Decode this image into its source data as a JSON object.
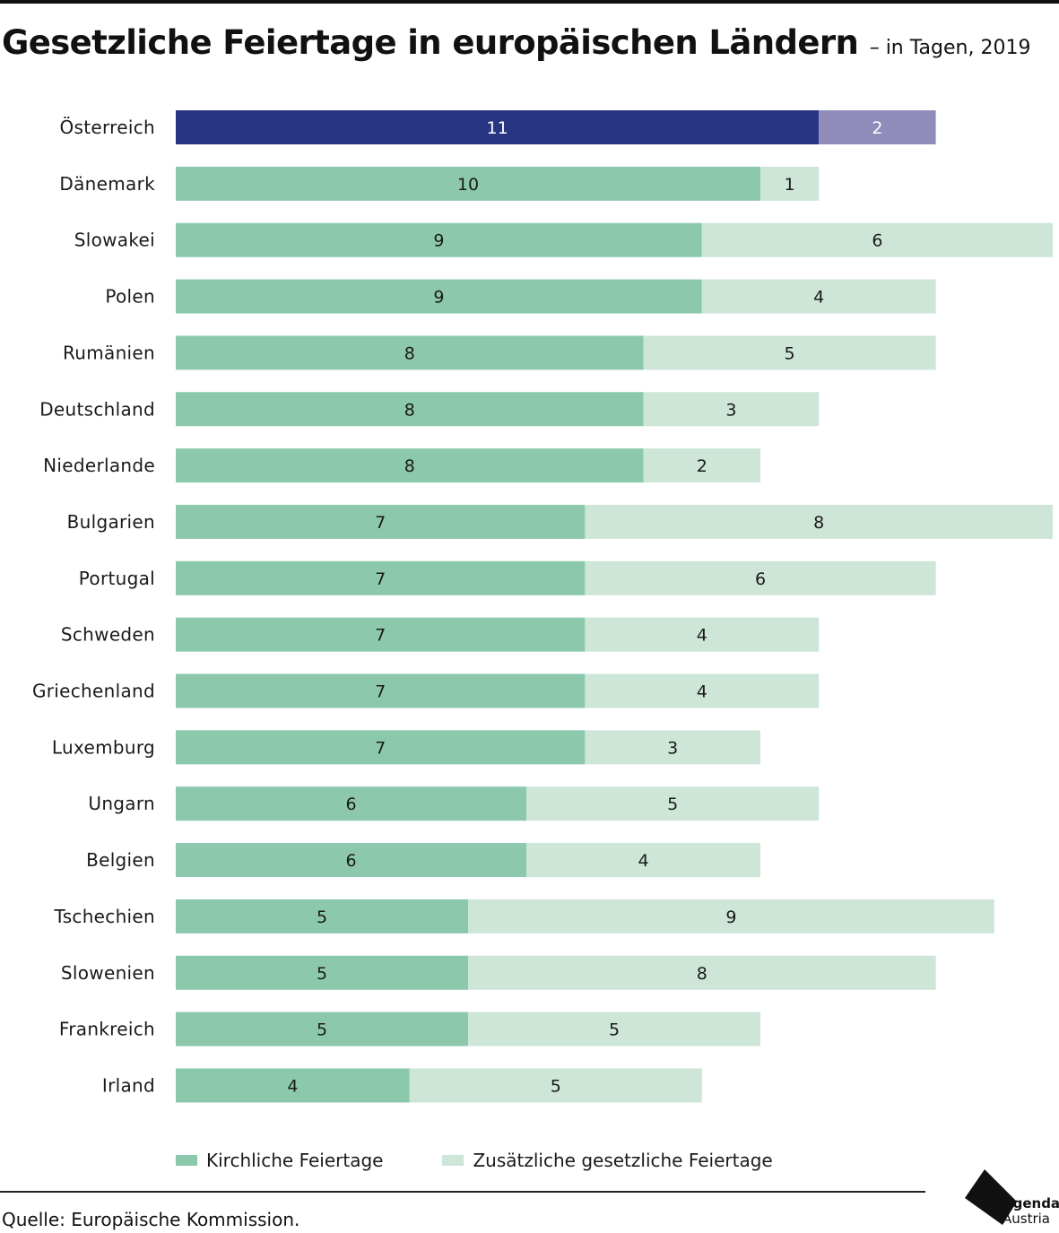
{
  "title": "Gesetzliche Feiertage in europäischen Ländern",
  "subtitle": "– in Tagen, 2019",
  "source": "Quelle: Europäische Kommission.",
  "logo": {
    "line1": "Agenda",
    "line2": "Austria"
  },
  "colors": {
    "kirchlich": "#8cc9ac",
    "zusaetzlich": "#cde6d8",
    "highlight_kirchlich": "#283583",
    "highlight_zusaetzlich": "#8f8cba",
    "text": "#1a1a1a"
  },
  "legend": {
    "kirchlich": "Kirchliche Feiertage",
    "zusaetzlich": "Zusätzliche gesetzliche Feiertage"
  },
  "chart_data": {
    "type": "bar",
    "orientation": "horizontal",
    "stacked": true,
    "categories": [
      "Österreich",
      "Dänemark",
      "Slowakei",
      "Polen",
      "Rumänien",
      "Deutschland",
      "Niederlande",
      "Bulgarien",
      "Portugal",
      "Schweden",
      "Griechenland",
      "Luxemburg",
      "Ungarn",
      "Belgien",
      "Tschechien",
      "Slowenien",
      "Frankreich",
      "Irland"
    ],
    "series": [
      {
        "name": "Kirchliche Feiertage",
        "values": [
          11,
          10,
          9,
          9,
          8,
          8,
          8,
          7,
          7,
          7,
          7,
          7,
          6,
          6,
          5,
          5,
          5,
          4
        ]
      },
      {
        "name": "Zusätzliche gesetzliche Feiertage",
        "values": [
          2,
          1,
          6,
          4,
          5,
          3,
          2,
          8,
          6,
          4,
          4,
          3,
          5,
          4,
          9,
          8,
          5,
          5
        ]
      }
    ],
    "highlight_category": "Österreich",
    "xlim": [
      0,
      15
    ],
    "grid": false,
    "legend_position": "bottom-left"
  }
}
